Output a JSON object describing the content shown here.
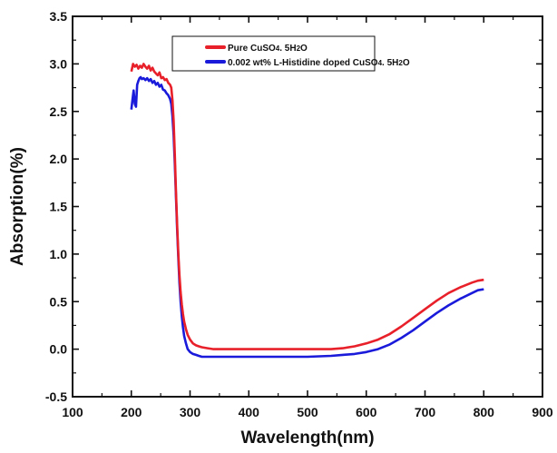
{
  "chart_data": {
    "type": "line",
    "title": "",
    "xlabel": "Wavelength(nm)",
    "ylabel": "Absorption(%)",
    "xlim": [
      100,
      900
    ],
    "ylim": [
      -0.5,
      3.5
    ],
    "x_ticks": [
      100,
      200,
      300,
      400,
      500,
      600,
      700,
      800,
      900
    ],
    "y_ticks": [
      -0.5,
      0.0,
      0.5,
      1.0,
      1.5,
      2.0,
      2.5,
      3.0,
      3.5
    ],
    "x_tick_labels": [
      "100",
      "200",
      "300",
      "400",
      "500",
      "600",
      "700",
      "800",
      "900"
    ],
    "y_tick_labels": [
      "-0.5",
      "0.0",
      "0.5",
      "1.0",
      "1.5",
      "2.0",
      "2.5",
      "3.0",
      "3.5"
    ],
    "grid": false,
    "legend_position": "top-right",
    "legend": {
      "pure": {
        "prefix": "Pure CuSO",
        "sub1": "4",
        "mid": ". 5H",
        "sub2": "2",
        "suffix": "O"
      },
      "doped": {
        "prefix": "0.002 wt% L-Histidine doped CuSO",
        "sub1": "4",
        "mid": ". 5H",
        "sub2": "2",
        "suffix": "O"
      }
    },
    "series": [
      {
        "name": "Pure CuSO4. 5H2O",
        "color": "#e8202a",
        "x": [
          200,
          203,
          206,
          209,
          212,
          215,
          218,
          221,
          224,
          227,
          230,
          233,
          236,
          239,
          242,
          245,
          248,
          251,
          254,
          257,
          260,
          263,
          266,
          268,
          270,
          272,
          274,
          276,
          278,
          280,
          282,
          284,
          286,
          288,
          290,
          293,
          296,
          300,
          305,
          310,
          315,
          320,
          330,
          340,
          360,
          380,
          400,
          450,
          500,
          540,
          560,
          580,
          600,
          620,
          640,
          660,
          680,
          700,
          720,
          740,
          760,
          780,
          790,
          800
        ],
        "y": [
          2.92,
          3.0,
          2.97,
          2.99,
          2.95,
          2.98,
          2.96,
          3.0,
          2.97,
          2.95,
          2.98,
          2.93,
          2.96,
          2.92,
          2.9,
          2.88,
          2.91,
          2.85,
          2.86,
          2.83,
          2.84,
          2.8,
          2.78,
          2.75,
          2.62,
          2.4,
          2.05,
          1.65,
          1.3,
          1.0,
          0.78,
          0.6,
          0.47,
          0.37,
          0.29,
          0.21,
          0.15,
          0.1,
          0.06,
          0.04,
          0.03,
          0.02,
          0.01,
          0.0,
          0.0,
          0.0,
          0.0,
          0.0,
          0.0,
          0.0,
          0.01,
          0.03,
          0.06,
          0.1,
          0.16,
          0.24,
          0.33,
          0.42,
          0.51,
          0.59,
          0.65,
          0.7,
          0.72,
          0.73
        ]
      },
      {
        "name": "0.002 wt% L-Histidine doped CuSO4. 5H2O",
        "color": "#1a1adb",
        "x": [
          200,
          202,
          204,
          206,
          208,
          210,
          212,
          214,
          216,
          218,
          221,
          224,
          227,
          230,
          233,
          236,
          239,
          242,
          245,
          248,
          251,
          254,
          257,
          260,
          263,
          266,
          268,
          270,
          272,
          274,
          276,
          278,
          280,
          282,
          284,
          286,
          288,
          290,
          293,
          296,
          300,
          305,
          310,
          315,
          320,
          330,
          340,
          360,
          380,
          400,
          450,
          500,
          540,
          560,
          580,
          600,
          620,
          640,
          660,
          680,
          700,
          720,
          740,
          760,
          780,
          790,
          800
        ],
        "y": [
          2.52,
          2.62,
          2.72,
          2.58,
          2.55,
          2.78,
          2.82,
          2.85,
          2.86,
          2.84,
          2.85,
          2.83,
          2.85,
          2.82,
          2.84,
          2.8,
          2.82,
          2.78,
          2.8,
          2.76,
          2.78,
          2.73,
          2.72,
          2.69,
          2.67,
          2.63,
          2.58,
          2.45,
          2.25,
          1.95,
          1.6,
          1.25,
          0.95,
          0.7,
          0.5,
          0.35,
          0.23,
          0.14,
          0.06,
          0.0,
          -0.03,
          -0.05,
          -0.06,
          -0.07,
          -0.08,
          -0.08,
          -0.08,
          -0.08,
          -0.08,
          -0.08,
          -0.08,
          -0.08,
          -0.07,
          -0.06,
          -0.05,
          -0.03,
          0.0,
          0.05,
          0.12,
          0.2,
          0.29,
          0.38,
          0.46,
          0.53,
          0.59,
          0.62,
          0.63
        ]
      }
    ]
  }
}
